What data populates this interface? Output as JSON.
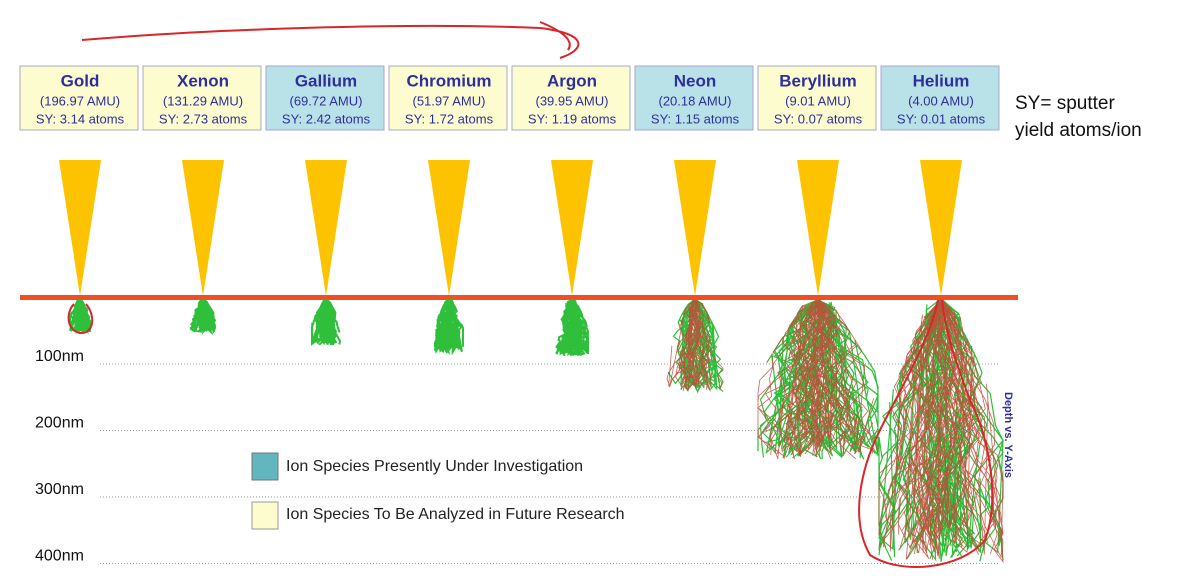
{
  "ions": [
    {
      "name": "Gold",
      "mass": "(196.97 AMU)",
      "yield": "SY: 3.14 atoms",
      "highlight": false
    },
    {
      "name": "Xenon",
      "mass": "(131.29 AMU)",
      "yield": "SY: 2.73 atoms",
      "highlight": false
    },
    {
      "name": "Gallium",
      "mass": "(69.72 AMU)",
      "yield": "SY: 2.42 atoms",
      "highlight": true
    },
    {
      "name": "Chromium",
      "mass": "(51.97 AMU)",
      "yield": "SY: 1.72 atoms",
      "highlight": false
    },
    {
      "name": "Argon",
      "mass": "(39.95 AMU)",
      "yield": "SY: 1.19 atoms",
      "highlight": false
    },
    {
      "name": "Neon",
      "mass": "(20.18 AMU)",
      "yield": "SY: 1.15 atoms",
      "highlight": true
    },
    {
      "name": "Beryllium",
      "mass": "(9.01 AMU)",
      "yield": "SY: 0.07 atoms",
      "highlight": false
    },
    {
      "name": "Helium",
      "mass": "(4.00 AMU)",
      "yield": "SY: 0.01 atoms",
      "highlight": true
    }
  ],
  "note": [
    "SY= sputter",
    "yield atoms/ion"
  ],
  "depths": [
    "100nm",
    "200nm",
    "300nm",
    "400nm"
  ],
  "legend": [
    "Ion Species Presently Under Investigation",
    "Ion Species To Be Analyzed in Future Research"
  ],
  "axis_label": "Depth vs. Y-Axis"
}
